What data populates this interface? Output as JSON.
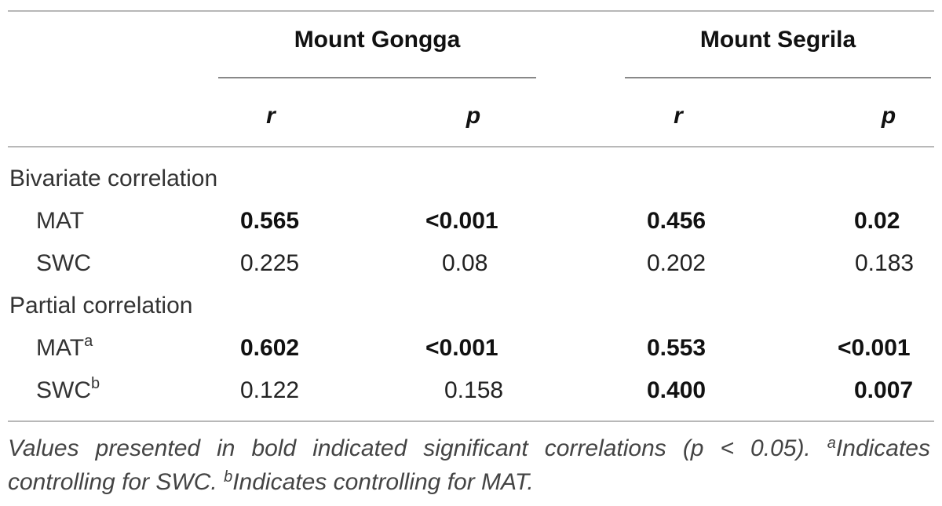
{
  "table": {
    "groups": [
      {
        "label": "Mount Gongga"
      },
      {
        "label": "Mount Segrila"
      }
    ],
    "subheaders": [
      "r",
      "p",
      "r",
      "p"
    ],
    "sections": [
      {
        "label": "Bivariate correlation",
        "rows": [
          {
            "label": "MAT",
            "sup": "",
            "cells": [
              {
                "value": "0.565",
                "bold": true
              },
              {
                "value": "<0.001",
                "bold": true
              },
              {
                "value": "0.456",
                "bold": true
              },
              {
                "value": "0.02",
                "bold": true
              }
            ]
          },
          {
            "label": "SWC",
            "sup": "",
            "cells": [
              {
                "value": "0.225",
                "bold": false
              },
              {
                "value": "0.08",
                "bold": false
              },
              {
                "value": "0.202",
                "bold": false
              },
              {
                "value": "0.183",
                "bold": false
              }
            ]
          }
        ]
      },
      {
        "label": "Partial correlation",
        "rows": [
          {
            "label": "MAT",
            "sup": "a",
            "cells": [
              {
                "value": "0.602",
                "bold": true
              },
              {
                "value": "<0.001",
                "bold": true
              },
              {
                "value": "0.553",
                "bold": true
              },
              {
                "value": "<0.001",
                "bold": true
              }
            ]
          },
          {
            "label": "SWC",
            "sup": "b",
            "cells": [
              {
                "value": "0.122",
                "bold": false
              },
              {
                "value": "0.158",
                "bold": false
              },
              {
                "value": "0.400",
                "bold": true
              },
              {
                "value": "0.007",
                "bold": true
              }
            ]
          }
        ]
      }
    ],
    "footnote": {
      "main": "Values presented in bold indicated significant correlations (p < 0.05). ",
      "note_a_marker": "a",
      "note_a": "Indicates controlling for SWC. ",
      "note_b_marker": "b",
      "note_b": "Indicates controlling for MAT."
    }
  }
}
